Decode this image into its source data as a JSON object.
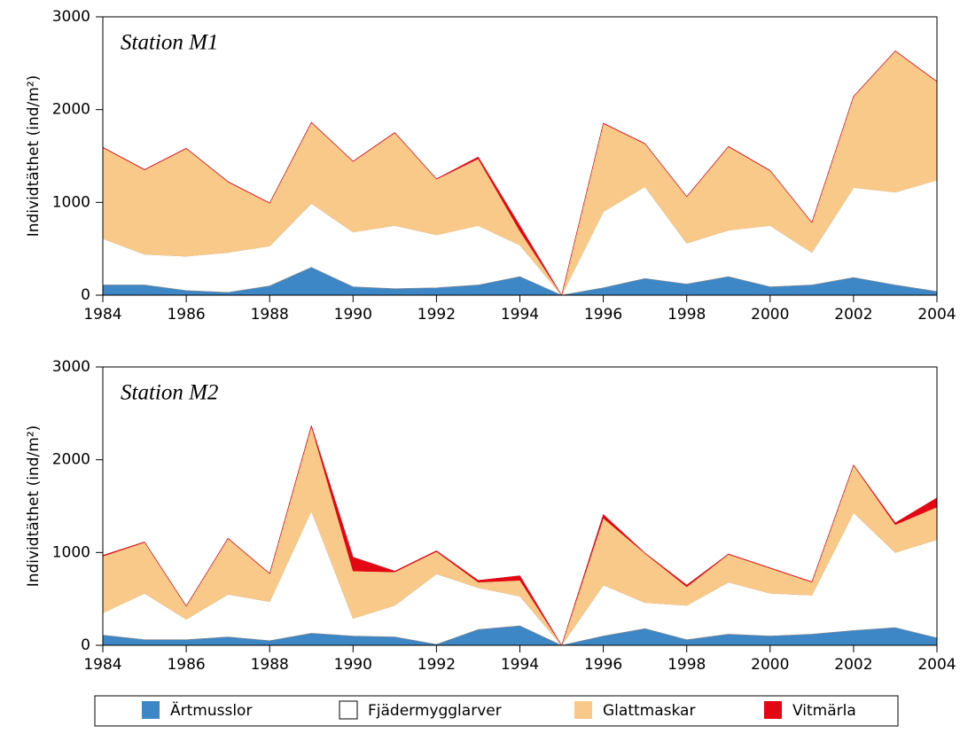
{
  "chart_data": [
    {
      "type": "stacked-area",
      "title": "Station M1",
      "y_label": "Individtäthet (ind/m²)",
      "x": [
        1984,
        1985,
        1986,
        1987,
        1988,
        1989,
        1990,
        1991,
        1992,
        1993,
        1994,
        1995,
        1996,
        1997,
        1998,
        1999,
        2000,
        2001,
        2002,
        2003,
        2004
      ],
      "series": [
        {
          "name": "Ärtmusslor",
          "color": "#3d87c6",
          "values": [
            110,
            110,
            50,
            30,
            100,
            300,
            90,
            70,
            80,
            110,
            200,
            0,
            80,
            180,
            120,
            200,
            90,
            110,
            190,
            110,
            40
          ]
        },
        {
          "name": "Fjädermygglarver",
          "color": "#ffffff",
          "values": [
            500,
            330,
            370,
            430,
            430,
            690,
            590,
            680,
            570,
            640,
            340,
            0,
            820,
            990,
            440,
            500,
            660,
            350,
            970,
            1000,
            1200
          ]
        },
        {
          "name": "Glattmaskar",
          "color": "#f9c98a",
          "values": [
            980,
            910,
            1160,
            760,
            460,
            870,
            760,
            1000,
            600,
            720,
            150,
            0,
            950,
            460,
            500,
            900,
            590,
            320,
            980,
            1520,
            1060
          ]
        },
        {
          "name": "Vitmärla",
          "color": "#e30613",
          "values": [
            5,
            5,
            5,
            5,
            5,
            5,
            5,
            5,
            5,
            20,
            60,
            0,
            5,
            5,
            5,
            5,
            5,
            5,
            5,
            5,
            5
          ]
        }
      ],
      "xlim": [
        1984,
        2004
      ],
      "xticks": [
        1984,
        1986,
        1988,
        1990,
        1992,
        1994,
        1996,
        1998,
        2000,
        2002,
        2004
      ],
      "ylim": [
        0,
        3000
      ],
      "yticks": [
        0,
        1000,
        2000,
        3000
      ]
    },
    {
      "type": "stacked-area",
      "title": "Station M2",
      "y_label": "Individtäthet (ind/m²)",
      "x": [
        1984,
        1985,
        1986,
        1987,
        1988,
        1989,
        1990,
        1991,
        1992,
        1993,
        1994,
        1995,
        1996,
        1997,
        1998,
        1999,
        2000,
        2001,
        2002,
        2003,
        2004
      ],
      "series": [
        {
          "name": "Ärtmusslor",
          "color": "#3d87c6",
          "values": [
            110,
            60,
            60,
            90,
            50,
            130,
            100,
            90,
            10,
            170,
            210,
            0,
            100,
            180,
            60,
            120,
            100,
            120,
            160,
            190,
            80
          ]
        },
        {
          "name": "Fjädermygglarver",
          "color": "#ffffff",
          "values": [
            240,
            500,
            220,
            460,
            420,
            1320,
            190,
            340,
            760,
            450,
            320,
            0,
            550,
            280,
            370,
            560,
            460,
            420,
            1270,
            810,
            1060
          ]
        },
        {
          "name": "Glattmaskar",
          "color": "#f9c98a",
          "values": [
            610,
            550,
            140,
            600,
            300,
            910,
            510,
            360,
            240,
            60,
            170,
            0,
            720,
            530,
            200,
            300,
            270,
            140,
            510,
            300,
            350
          ]
        },
        {
          "name": "Vitmärla",
          "color": "#e30613",
          "values": [
            10,
            5,
            5,
            5,
            5,
            10,
            150,
            10,
            10,
            20,
            50,
            0,
            40,
            5,
            20,
            5,
            5,
            5,
            5,
            20,
            100
          ]
        }
      ],
      "xlim": [
        1984,
        2004
      ],
      "xticks": [
        1984,
        1986,
        1988,
        1990,
        1992,
        1994,
        1996,
        1998,
        2000,
        2002,
        2004
      ],
      "ylim": [
        0,
        3000
      ],
      "yticks": [
        0,
        1000,
        2000,
        3000
      ]
    }
  ]
}
